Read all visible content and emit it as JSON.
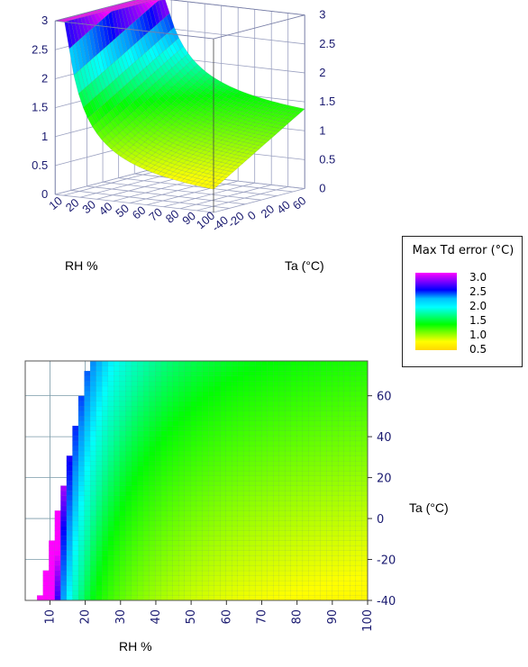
{
  "chart_data": [
    {
      "type": "surface",
      "xlabel": "RH %",
      "ylabel": "Ta (°C)",
      "zlabel": "",
      "x_ticks": [
        "10",
        "20",
        "30",
        "40",
        "50",
        "60",
        "70",
        "80",
        "90",
        "100"
      ],
      "y_ticks": [
        "-40",
        "-20",
        "0",
        "20",
        "40",
        "60"
      ],
      "z_ticks": [
        "0",
        "0.5",
        "1",
        "1.5",
        "2",
        "2.5",
        "3"
      ],
      "xlim": [
        5,
        100
      ],
      "ylim": [
        -40,
        75
      ],
      "zlim": [
        0,
        3
      ],
      "sample_points": [
        {
          "rh": 100,
          "ta": -40,
          "error": 0.2
        },
        {
          "rh": 100,
          "ta": 75,
          "error": 1.2
        },
        {
          "rh": 50,
          "ta": 20,
          "error": 1.6
        },
        {
          "rh": 10,
          "ta": -40,
          "error": 3.0
        },
        {
          "rh": 20,
          "ta": 75,
          "error": 3.0
        }
      ],
      "grid": true
    },
    {
      "type": "heatmap",
      "xlabel": "RH %",
      "ylabel": "Ta (°C)",
      "x_ticks": [
        "10",
        "20",
        "30",
        "40",
        "50",
        "60",
        "70",
        "80",
        "90",
        "100"
      ],
      "y_ticks": [
        "-40",
        "-20",
        "0",
        "20",
        "40",
        "60"
      ],
      "xlim": [
        3,
        100
      ],
      "ylim": [
        -40,
        77
      ],
      "grid": true
    }
  ],
  "legend": {
    "title": "Max Td error (°C)",
    "ticks": [
      "3.0",
      "2.5",
      "2.0",
      "1.5",
      "1.0",
      "0.5"
    ]
  }
}
